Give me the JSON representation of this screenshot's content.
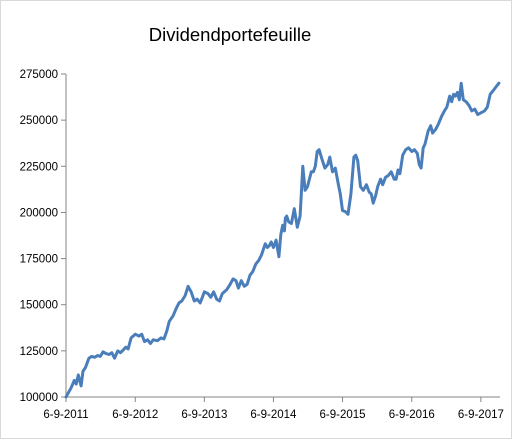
{
  "chart_data": {
    "type": "line",
    "title": "Dividendportefeuille",
    "xlabel": "",
    "ylabel": "",
    "ylim": [
      100000,
      275000
    ],
    "xlim": [
      "2011-09-06",
      "2017-12-16"
    ],
    "y_ticks": [
      100000,
      125000,
      150000,
      175000,
      200000,
      225000,
      250000,
      275000
    ],
    "y_tick_labels": [
      "100000",
      "125000",
      "150000",
      "175000",
      "200000",
      "225000",
      "250000",
      "275000"
    ],
    "x_ticks": [
      "2011-09-06",
      "2012-09-06",
      "2013-09-06",
      "2014-09-06",
      "2015-09-06",
      "2016-09-06",
      "2017-09-06"
    ],
    "x_tick_labels": [
      "6-9-2011",
      "6-9-2012",
      "6-9-2013",
      "6-9-2014",
      "6-9-2015",
      "6-9-2016",
      "6-9-2017"
    ],
    "grid": false,
    "legend": "none",
    "line_color": "#4a7ebb",
    "series": [
      {
        "x": [
          "2011-09-06",
          "2011-10-03",
          "2011-10-20",
          "2011-10-30",
          "2011-11-10",
          "2011-11-25",
          "2011-12-05",
          "2011-12-18",
          "2012-01-05",
          "2012-01-20",
          "2012-02-05",
          "2012-02-20",
          "2012-03-05",
          "2012-03-20",
          "2012-04-05",
          "2012-04-20",
          "2012-05-05",
          "2012-05-20",
          "2012-06-05",
          "2012-06-20",
          "2012-07-05",
          "2012-07-18",
          "2012-07-30",
          "2012-08-15",
          "2012-09-06",
          "2012-09-25",
          "2012-10-10",
          "2012-10-25",
          "2012-11-10",
          "2012-11-25",
          "2012-12-10",
          "2013-01-01",
          "2013-01-20",
          "2013-02-05",
          "2013-02-20",
          "2013-03-05",
          "2013-03-25",
          "2013-04-10",
          "2013-04-25",
          "2013-05-10",
          "2013-05-28",
          "2013-06-12",
          "2013-06-28",
          "2013-07-15",
          "2013-07-30",
          "2013-08-15",
          "2013-09-06",
          "2013-09-25",
          "2013-10-10",
          "2013-10-25",
          "2013-11-10",
          "2013-11-25",
          "2013-12-10",
          "2014-01-01",
          "2014-01-20",
          "2014-02-05",
          "2014-02-20",
          "2014-03-05",
          "2014-03-20",
          "2014-04-05",
          "2014-04-20",
          "2014-05-05",
          "2014-05-20",
          "2014-06-05",
          "2014-06-20",
          "2014-07-05",
          "2014-07-18",
          "2014-07-25",
          "2014-08-05",
          "2014-08-15",
          "2014-08-25",
          "2014-09-06",
          "2014-09-20",
          "2014-10-05",
          "2014-10-15",
          "2014-10-25",
          "2014-11-03",
          "2014-11-08",
          "2014-11-15",
          "2014-11-25",
          "2014-12-10",
          "2014-12-25",
          "2015-01-10",
          "2015-01-25",
          "2015-02-08",
          "2015-02-20",
          "2015-03-05",
          "2015-03-15",
          "2015-03-25",
          "2015-04-05",
          "2015-04-15",
          "2015-04-25",
          "2015-05-05",
          "2015-05-20",
          "2015-06-05",
          "2015-06-20",
          "2015-07-01",
          "2015-07-15",
          "2015-07-30",
          "2015-08-15",
          "2015-08-25",
          "2015-09-06",
          "2015-09-20",
          "2015-10-05",
          "2015-10-20",
          "2015-11-05",
          "2015-11-15",
          "2015-11-25",
          "2015-12-10",
          "2015-12-25",
          "2016-01-10",
          "2016-01-25",
          "2016-02-05",
          "2016-02-15",
          "2016-02-28",
          "2016-03-10",
          "2016-03-25",
          "2016-04-05",
          "2016-04-20",
          "2016-05-05",
          "2016-05-20",
          "2016-06-05",
          "2016-06-15",
          "2016-06-25",
          "2016-07-05",
          "2016-07-20",
          "2016-08-05",
          "2016-08-20",
          "2016-09-06",
          "2016-09-20",
          "2016-10-05",
          "2016-10-15",
          "2016-10-25",
          "2016-11-05",
          "2016-11-15",
          "2016-12-01",
          "2016-12-15",
          "2016-12-25",
          "2017-01-10",
          "2017-01-25",
          "2017-02-10",
          "2017-02-25",
          "2017-03-10",
          "2017-03-25",
          "2017-04-05",
          "2017-04-15",
          "2017-04-25",
          "2017-05-05",
          "2017-05-15",
          "2017-05-25",
          "2017-06-05",
          "2017-06-20",
          "2017-07-05",
          "2017-07-20",
          "2017-08-05",
          "2017-08-20",
          "2017-09-06",
          "2017-09-25",
          "2017-10-10",
          "2017-10-25",
          "2017-11-10",
          "2017-11-25",
          "2017-12-10"
        ],
        "values": [
          100000,
          105000,
          109000,
          107000,
          112000,
          106000,
          114000,
          116000,
          121000,
          122000,
          121500,
          122500,
          122000,
          124500,
          123500,
          123000,
          124000,
          121000,
          125000,
          124000,
          125500,
          127000,
          126000,
          132000,
          134000,
          133000,
          134000,
          130000,
          131000,
          129000,
          131000,
          130500,
          132000,
          131500,
          136000,
          141000,
          144000,
          148000,
          151000,
          152000,
          155000,
          160000,
          157000,
          152000,
          153000,
          151000,
          157000,
          156000,
          154000,
          157000,
          153000,
          152000,
          156000,
          158000,
          161000,
          164000,
          163000,
          159000,
          163000,
          160000,
          161000,
          166000,
          168000,
          172000,
          174000,
          177000,
          181000,
          183000,
          181000,
          182000,
          184000,
          181000,
          185000,
          176000,
          188000,
          193000,
          190000,
          197000,
          198000,
          195000,
          194000,
          202000,
          192000,
          198000,
          225000,
          212000,
          214000,
          218000,
          222000,
          222000,
          225000,
          233000,
          234000,
          229000,
          224000,
          226000,
          230000,
          222000,
          224000,
          215000,
          210000,
          201000,
          200500,
          199000,
          210000,
          230000,
          231000,
          228000,
          214000,
          212000,
          215000,
          211000,
          210000,
          205000,
          209000,
          214000,
          218000,
          215000,
          219000,
          220000,
          222000,
          218000,
          218000,
          223000,
          221000,
          231000,
          234000,
          235000,
          233000,
          234000,
          232000,
          226000,
          224000,
          235000,
          237000,
          244000,
          247000,
          243000,
          245000,
          248000,
          252000,
          255000,
          257000,
          263000,
          260000,
          264000,
          263000,
          265000,
          261000,
          270000,
          261000,
          260000,
          258000,
          255000,
          256000,
          253000,
          254000,
          255000,
          257000,
          264000,
          266000,
          268000,
          270000
        ]
      }
    ]
  }
}
